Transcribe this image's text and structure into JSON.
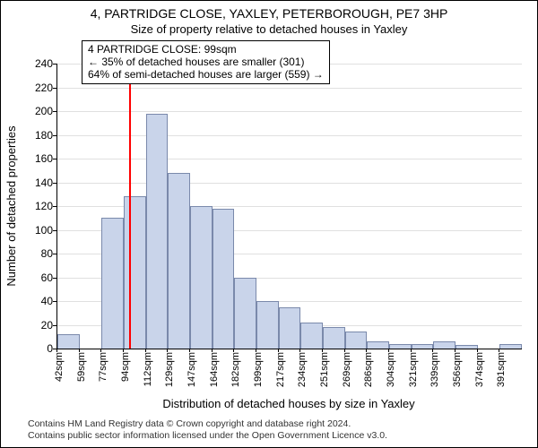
{
  "title_line1": "4, PARTRIDGE CLOSE, YAXLEY, PETERBOROUGH, PE7 3HP",
  "title_line2": "Size of property relative to detached houses in Yaxley",
  "ylabel": "Number of detached properties",
  "xlabel": "Distribution of detached houses by size in Yaxley",
  "annotation": {
    "line1": "4 PARTRIDGE CLOSE: 99sqm",
    "line2": "← 35% of detached houses are smaller (301)",
    "line3": "64% of semi-detached houses are larger (559) →"
  },
  "attribution": {
    "line1": "Contains HM Land Registry data © Crown copyright and database right 2024.",
    "line2": "Contains public sector information licensed under the Open Government Licence v3.0."
  },
  "chart": {
    "type": "histogram",
    "ylim": [
      0,
      240
    ],
    "ytick_step": 20,
    "bar_fill": "#c9d4ea",
    "bar_stroke": "#7a89ab",
    "grid_color": "#e0e0e0",
    "background_color": "#ffffff",
    "refline_x_value": 99,
    "refline_color": "#ff0000",
    "x_start": 42,
    "x_bin_width": 17.5,
    "categories": [
      "42sqm",
      "59sqm",
      "77sqm",
      "94sqm",
      "112sqm",
      "129sqm",
      "147sqm",
      "164sqm",
      "182sqm",
      "199sqm",
      "217sqm",
      "234sqm",
      "251sqm",
      "269sqm",
      "286sqm",
      "304sqm",
      "321sqm",
      "339sqm",
      "356sqm",
      "374sqm",
      "391sqm"
    ],
    "values": [
      12,
      0,
      110,
      128,
      198,
      148,
      120,
      118,
      60,
      40,
      35,
      22,
      18,
      14,
      6,
      4,
      4,
      6,
      3,
      0,
      4
    ]
  },
  "fonts": {
    "title_fontsize_pt": 14,
    "subtitle_fontsize_pt": 13,
    "axis_label_fontsize_pt": 13,
    "tick_fontsize_pt": 12,
    "annot_fontsize_pt": 12,
    "attribution_fontsize_pt": 10
  }
}
